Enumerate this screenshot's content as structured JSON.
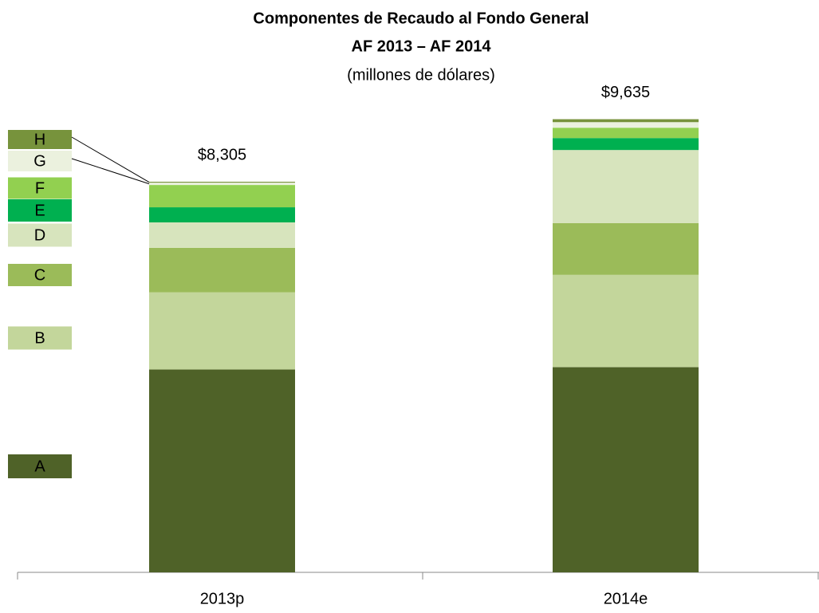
{
  "chart_data": {
    "type": "stacked_bar",
    "title": "Componentes de Recaudo al Fondo General",
    "subtitle": "AF 2013 – AF 2014",
    "note": "(millones de dólares)",
    "categories": [
      "2013p",
      "2014e"
    ],
    "series": [
      {
        "name": "A",
        "color": "#4f6228",
        "values": [
          4313,
          4363
        ]
      },
      {
        "name": "B",
        "color": "#c3d69b",
        "values": [
          1640,
          1962
        ]
      },
      {
        "name": "C",
        "color": "#9bbb59",
        "values": [
          947,
          1099
        ]
      },
      {
        "name": "D",
        "color": "#d7e4bd",
        "values": [
          541,
          1556
        ]
      },
      {
        "name": "E",
        "color": "#00b050",
        "values": [
          321,
          254
        ]
      },
      {
        "name": "F",
        "color": "#92d050",
        "values": [
          474,
          220
        ]
      },
      {
        "name": "G",
        "color": "#ebf1de",
        "values": [
          50,
          118
        ]
      },
      {
        "name": "H",
        "color": "#77933c",
        "values": [
          19,
          63
        ]
      }
    ],
    "totals": [
      8305,
      9635
    ],
    "total_labels": [
      "$8,305",
      "$9,635"
    ],
    "ylim": [
      0,
      10000
    ]
  }
}
